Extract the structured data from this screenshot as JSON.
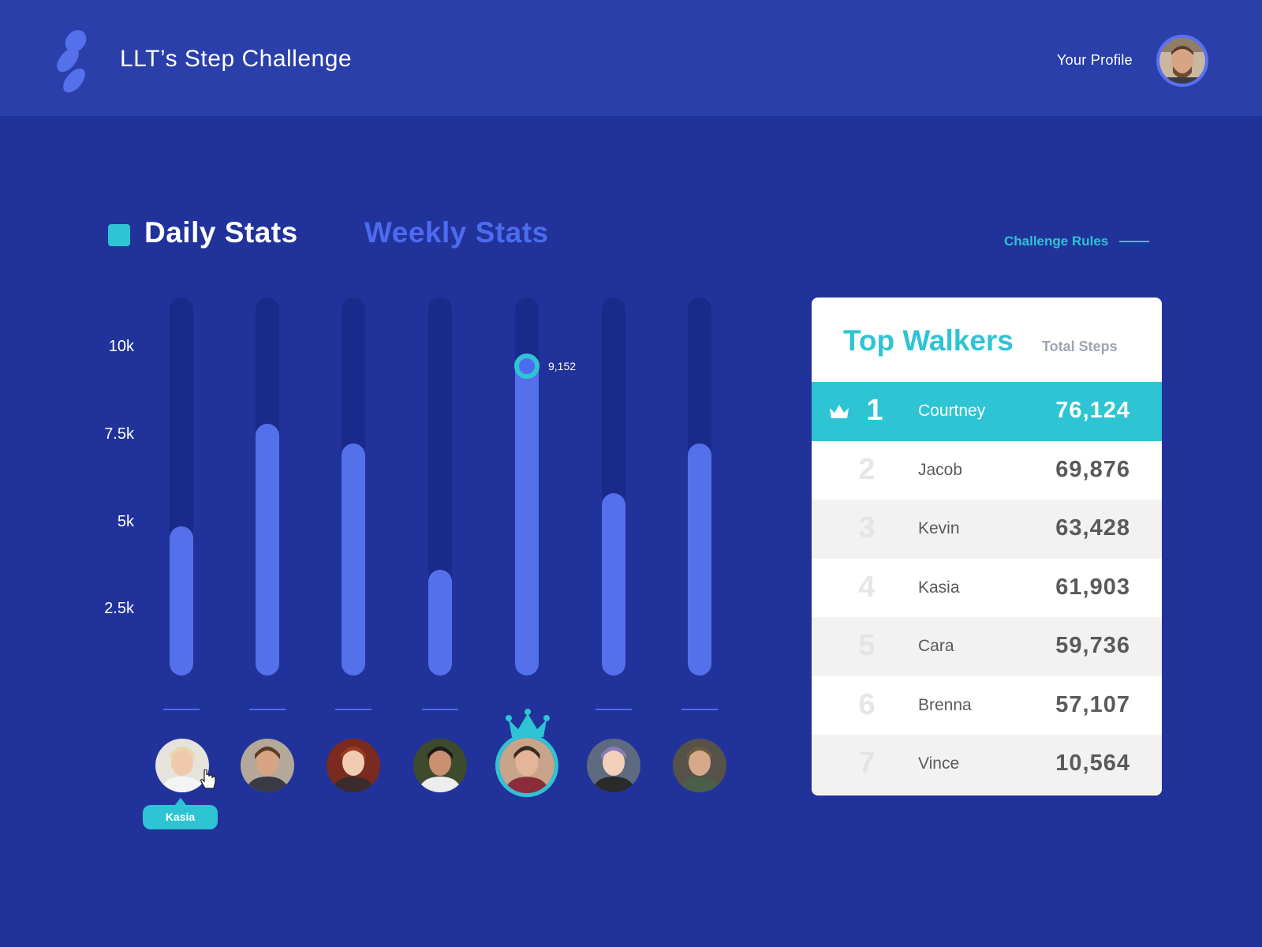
{
  "header": {
    "app_title": "LLT’s Step Challenge",
    "profile_label": "Your Profile"
  },
  "tabs": {
    "daily": "Daily Stats",
    "weekly": "Weekly Stats",
    "active": "daily"
  },
  "rules_link": "Challenge Rules",
  "chart_data": {
    "type": "bar",
    "y_ticks": [
      "10k",
      "7.5k",
      "5k",
      "2.5k"
    ],
    "ylim": [
      0,
      10800
    ],
    "values": [
      4270,
      7200,
      6640,
      3020,
      9152,
      5210,
      6640
    ],
    "highlight_index": 4,
    "highlight_label": "9,152",
    "colors": {
      "track": "#1a2a8a",
      "fill": "#5470ea",
      "accent": "#2ec4d4"
    }
  },
  "participants": [
    {
      "avatar": "person-1"
    },
    {
      "avatar": "person-2"
    },
    {
      "avatar": "person-3"
    },
    {
      "avatar": "person-4"
    },
    {
      "avatar": "person-5",
      "winner": true
    },
    {
      "avatar": "person-6"
    },
    {
      "avatar": "person-7"
    }
  ],
  "tooltip": {
    "label": "Kasia"
  },
  "leaderboard": {
    "title": "Top Walkers",
    "subtitle": "Total Steps",
    "rows": [
      {
        "rank": "1",
        "name": "Courtney",
        "steps": "76,124"
      },
      {
        "rank": "2",
        "name": "Jacob",
        "steps": "69,876"
      },
      {
        "rank": "3",
        "name": "Kevin",
        "steps": "63,428"
      },
      {
        "rank": "4",
        "name": "Kasia",
        "steps": "61,903"
      },
      {
        "rank": "5",
        "name": "Cara",
        "steps": "59,736"
      },
      {
        "rank": "6",
        "name": "Brenna",
        "steps": "57,107"
      },
      {
        "rank": "7",
        "name": "Vince",
        "steps": "10,564"
      }
    ]
  },
  "icons": {
    "logo": "footstep-logo-icon",
    "crown": "crown-icon",
    "cursor": "hand-pointer-icon"
  }
}
